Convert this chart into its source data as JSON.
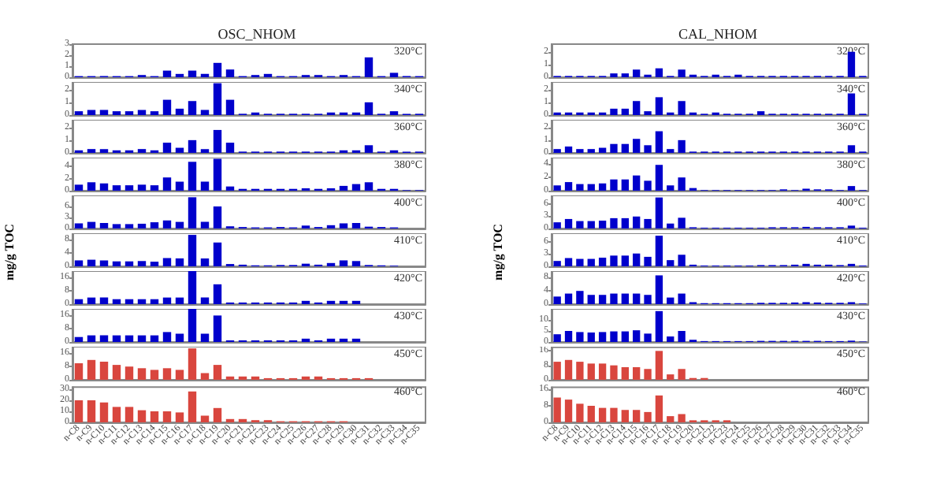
{
  "chart_data": [
    {
      "type": "bar",
      "title": "OSC_NHOM",
      "categories": [
        null,
        null,
        null,
        null,
        null,
        null,
        null,
        null,
        null,
        null,
        null,
        null,
        null,
        null,
        null,
        null,
        null,
        null,
        null,
        null,
        null,
        null,
        null,
        null,
        null,
        null,
        null,
        null
      ],
      "values": [
        0.1,
        0.1,
        0.1,
        0.1,
        0.1,
        0.2,
        0.1,
        0.6,
        0.3,
        0.6,
        0.3,
        1.3,
        0.7,
        0.1,
        0.2,
        0.3,
        0.1,
        0.1,
        0.2,
        0.2,
        0.1,
        0.2,
        0.1,
        1.8,
        0.1,
        0.4,
        0.1,
        0.1
      ],
      "color": "#0000cc",
      "ylim": [
        0,
        3
      ],
      "yticks": [
        0,
        1,
        2,
        3
      ],
      "annotations": [
        "320°C"
      ]
    },
    {
      "type": "bar",
      "categories": [
        null,
        null,
        null,
        null,
        null,
        null,
        null,
        null,
        null,
        null,
        null,
        null,
        null,
        null,
        null,
        null,
        null,
        null,
        null,
        null,
        null,
        null,
        null,
        null,
        null,
        null,
        null,
        null
      ],
      "values": [
        0.3,
        0.4,
        0.4,
        0.3,
        0.3,
        0.4,
        0.3,
        1.2,
        0.5,
        1.1,
        0.4,
        2.5,
        1.2,
        0.1,
        0.2,
        0.1,
        0.1,
        0.1,
        0.1,
        0.1,
        0.2,
        0.2,
        0.2,
        1.0,
        0.1,
        0.3,
        0.1,
        0.1
      ],
      "color": "#0000cc",
      "ylim": [
        0,
        2.6
      ],
      "yticks": [
        0,
        1,
        2
      ],
      "annotations": [
        "340°C"
      ]
    },
    {
      "type": "bar",
      "categories": [
        null,
        null,
        null,
        null,
        null,
        null,
        null,
        null,
        null,
        null,
        null,
        null,
        null,
        null,
        null,
        null,
        null,
        null,
        null,
        null,
        null,
        null,
        null,
        null,
        null,
        null,
        null,
        null
      ],
      "values": [
        0.2,
        0.3,
        0.3,
        0.2,
        0.2,
        0.3,
        0.2,
        0.8,
        0.4,
        1.0,
        0.3,
        1.8,
        0.8,
        0.1,
        0.1,
        0.1,
        0.1,
        0.1,
        0.1,
        0.1,
        0.1,
        0.2,
        0.2,
        0.6,
        0.1,
        0.2,
        0.1,
        0.1
      ],
      "color": "#0000cc",
      "ylim": [
        0,
        2.6
      ],
      "yticks": [
        0,
        1,
        2
      ],
      "annotations": [
        "360°C"
      ]
    },
    {
      "type": "bar",
      "categories": [
        null,
        null,
        null,
        null,
        null,
        null,
        null,
        null,
        null,
        null,
        null,
        null,
        null,
        null,
        null,
        null,
        null,
        null,
        null,
        null,
        null,
        null,
        null,
        null,
        null,
        null,
        null,
        null
      ],
      "values": [
        1.0,
        1.4,
        1.2,
        0.9,
        0.9,
        1.0,
        0.9,
        2.2,
        1.5,
        4.8,
        1.5,
        5.3,
        0.7,
        0.3,
        0.3,
        0.3,
        0.3,
        0.3,
        0.4,
        0.3,
        0.4,
        0.8,
        1.1,
        1.4,
        0.3,
        0.3,
        0.1,
        0.1
      ],
      "color": "#0000cc",
      "ylim": [
        0,
        5.5
      ],
      "yticks": [
        0,
        2,
        4
      ],
      "annotations": [
        "380°C"
      ]
    },
    {
      "type": "bar",
      "categories": [
        null,
        null,
        null,
        null,
        null,
        null,
        null,
        null,
        null,
        null,
        null,
        null,
        null,
        null,
        null,
        null,
        null,
        null,
        null,
        null,
        null,
        null,
        null,
        null,
        null,
        null,
        null,
        null
      ],
      "values": [
        1.4,
        1.8,
        1.5,
        1.2,
        1.2,
        1.3,
        1.7,
        2.2,
        1.8,
        8.5,
        1.8,
        6.0,
        0.6,
        0.4,
        0.3,
        0.3,
        0.4,
        0.3,
        0.8,
        0.4,
        0.9,
        1.4,
        1.5,
        0.5,
        0.4,
        0.3,
        null,
        null
      ],
      "color": "#0000cc",
      "ylim": [
        0,
        9
      ],
      "yticks": [
        0,
        3,
        6
      ],
      "annotations": [
        "400°C"
      ]
    },
    {
      "type": "bar",
      "ylabel": "mg/g TOC",
      "categories": [
        null,
        null,
        null,
        null,
        null,
        null,
        null,
        null,
        null,
        null,
        null,
        null,
        null,
        null,
        null,
        null,
        null,
        null,
        null,
        null,
        null,
        null,
        null,
        null,
        null,
        null,
        null,
        null
      ],
      "values": [
        1.8,
        2.0,
        1.8,
        1.5,
        1.5,
        1.6,
        1.4,
        2.5,
        2.4,
        9.5,
        2.4,
        7.2,
        0.7,
        0.5,
        0.3,
        0.3,
        0.4,
        0.4,
        0.8,
        0.5,
        1.0,
        1.8,
        1.6,
        0.4,
        0.3,
        0.2,
        null,
        null
      ],
      "color": "#0000cc",
      "ylim": [
        0,
        10
      ],
      "yticks": [
        0,
        4,
        8
      ],
      "annotations": [
        "410°C"
      ]
    },
    {
      "type": "bar",
      "categories": [
        null,
        null,
        null,
        null,
        null,
        null,
        null,
        null,
        null,
        null,
        null,
        null,
        null,
        null,
        null,
        null,
        null,
        null,
        null,
        null,
        null,
        null,
        null,
        null,
        null,
        null,
        null,
        null
      ],
      "values": [
        3,
        4,
        4,
        3,
        3,
        3,
        3,
        4,
        4,
        20,
        4,
        12,
        1,
        1,
        1,
        1,
        1,
        1,
        2,
        1,
        2,
        2,
        2,
        0,
        0,
        0,
        0,
        0
      ],
      "color": "#0000cc",
      "ylim": [
        0,
        20
      ],
      "yticks": [
        0,
        8,
        16
      ],
      "annotations": [
        "420°C"
      ]
    },
    {
      "type": "bar",
      "categories": [
        null,
        null,
        null,
        null,
        null,
        null,
        null,
        null,
        null,
        null,
        null,
        null,
        null,
        null,
        null,
        null,
        null,
        null,
        null,
        null,
        null,
        null,
        null,
        null,
        null,
        null,
        null,
        null
      ],
      "values": [
        3,
        4,
        4,
        4,
        4,
        4,
        4,
        6,
        5,
        20,
        5,
        16,
        1,
        1,
        1,
        1,
        1,
        1,
        2,
        1,
        2,
        2,
        2,
        0,
        0,
        0,
        0,
        0
      ],
      "color": "#0000cc",
      "ylim": [
        0,
        20
      ],
      "yticks": [
        0,
        8,
        16
      ],
      "annotations": [
        "430°C"
      ]
    },
    {
      "type": "bar",
      "categories": [
        null,
        null,
        null,
        null,
        null,
        null,
        null,
        null,
        null,
        null,
        null,
        null,
        null,
        null,
        null,
        null,
        null,
        null,
        null,
        null,
        null,
        null,
        null,
        null,
        null,
        null,
        null,
        null
      ],
      "values": [
        10,
        12,
        11,
        9,
        8,
        7,
        6,
        7,
        6,
        19,
        4,
        9,
        2,
        2,
        2,
        1,
        1,
        1,
        2,
        2,
        1,
        1,
        1,
        1,
        0,
        0,
        0,
        0
      ],
      "color": "#d9463e",
      "ylim": [
        0,
        20
      ],
      "yticks": [
        0,
        8,
        16
      ],
      "annotations": [
        "450°C"
      ]
    },
    {
      "type": "bar",
      "categories": [
        "n-C8",
        "n-C9",
        "n-C10",
        "n-C11",
        "n-C12",
        "n-C13",
        "n-C14",
        "n-C15",
        "n-C16",
        "n-C17",
        "n-C18",
        "n-C19",
        "n-C20",
        "n-C21",
        "n-C22",
        "n-C23",
        "n-C24",
        "n-C25",
        "n-C26",
        "n-C27",
        "n-C28",
        "n-C29",
        "n-C30",
        "n-C31",
        "n-C32",
        "n-C33",
        "n-C34",
        "n-C35"
      ],
      "values": [
        20,
        20,
        18,
        14,
        14,
        11,
        10,
        10,
        9,
        28,
        6,
        13,
        3,
        3,
        2,
        2,
        1,
        1,
        1,
        1,
        1,
        1,
        null,
        null,
        null,
        null,
        null,
        null
      ],
      "color": "#d9463e",
      "ylim": [
        0,
        32
      ],
      "yticks": [
        0,
        10,
        20,
        30
      ],
      "annotations": [
        "460°C"
      ]
    },
    {
      "type": "bar",
      "title": "CAL_NHOM",
      "categories": [
        null,
        null,
        null,
        null,
        null,
        null,
        null,
        null,
        null,
        null,
        null,
        null,
        null,
        null,
        null,
        null,
        null,
        null,
        null,
        null,
        null,
        null,
        null,
        null,
        null,
        null,
        null,
        null
      ],
      "values": [
        0.1,
        0.1,
        0.1,
        0.1,
        0.1,
        0.3,
        0.3,
        0.6,
        0.2,
        0.7,
        0.1,
        0.6,
        0.2,
        0.1,
        0.2,
        0.1,
        0.2,
        0.1,
        0.1,
        0.1,
        0.1,
        0.1,
        0.1,
        0.1,
        0.1,
        0.1,
        2.0,
        0.1
      ],
      "color": "#0000cc",
      "ylim": [
        0,
        2.6
      ],
      "yticks": [
        0,
        1,
        2
      ],
      "annotations": [
        "320°C"
      ]
    },
    {
      "type": "bar",
      "categories": [
        null,
        null,
        null,
        null,
        null,
        null,
        null,
        null,
        null,
        null,
        null,
        null,
        null,
        null,
        null,
        null,
        null,
        null,
        null,
        null,
        null,
        null,
        null,
        null,
        null,
        null,
        null,
        null
      ],
      "values": [
        0.2,
        0.2,
        0.2,
        0.2,
        0.2,
        0.5,
        0.5,
        1.1,
        0.3,
        1.4,
        0.2,
        1.1,
        0.2,
        0.1,
        0.2,
        0.1,
        0.1,
        0.1,
        0.3,
        0.1,
        0.1,
        0.1,
        0.1,
        0.1,
        0.1,
        0.1,
        1.7,
        0.1
      ],
      "color": "#0000cc",
      "ylim": [
        0,
        2.6
      ],
      "yticks": [
        0,
        1,
        2
      ],
      "annotations": [
        "340°C"
      ]
    },
    {
      "type": "bar",
      "categories": [
        null,
        null,
        null,
        null,
        null,
        null,
        null,
        null,
        null,
        null,
        null,
        null,
        null,
        null,
        null,
        null,
        null,
        null,
        null,
        null,
        null,
        null,
        null,
        null,
        null,
        null,
        null,
        null
      ],
      "values": [
        0.3,
        0.5,
        0.3,
        0.3,
        0.4,
        0.7,
        0.7,
        1.1,
        0.6,
        1.7,
        0.3,
        1.0,
        0.1,
        0.1,
        0.1,
        0.1,
        0.1,
        0.1,
        0.1,
        0.1,
        0.1,
        0.1,
        0.1,
        0.1,
        0.1,
        0.1,
        0.6,
        0.1
      ],
      "color": "#0000cc",
      "ylim": [
        0,
        2.6
      ],
      "yticks": [
        0,
        1,
        2
      ],
      "annotations": [
        "360°C"
      ]
    },
    {
      "type": "bar",
      "categories": [
        null,
        null,
        null,
        null,
        null,
        null,
        null,
        null,
        null,
        null,
        null,
        null,
        null,
        null,
        null,
        null,
        null,
        null,
        null,
        null,
        null,
        null,
        null,
        null,
        null,
        null,
        null,
        null
      ],
      "values": [
        0.8,
        1.3,
        1.0,
        1.0,
        1.1,
        1.7,
        1.7,
        2.3,
        1.5,
        3.9,
        0.8,
        2.0,
        0.4,
        0.1,
        0.1,
        0.1,
        0.1,
        0.1,
        0.1,
        0.1,
        0.2,
        0.1,
        0.3,
        0.2,
        0.2,
        0.1,
        0.7,
        0.1
      ],
      "color": "#0000cc",
      "ylim": [
        0,
        5
      ],
      "yticks": [
        0,
        2,
        4
      ],
      "annotations": [
        "380°C"
      ]
    },
    {
      "type": "bar",
      "categories": [
        null,
        null,
        null,
        null,
        null,
        null,
        null,
        null,
        null,
        null,
        null,
        null,
        null,
        null,
        null,
        null,
        null,
        null,
        null,
        null,
        null,
        null,
        null,
        null,
        null,
        null,
        null,
        null
      ],
      "values": [
        1.5,
        2.3,
        1.8,
        1.8,
        1.9,
        2.5,
        2.5,
        2.9,
        2.3,
        7.5,
        1.2,
        2.6,
        0.3,
        0.2,
        0.2,
        0.2,
        0.2,
        0.2,
        0.2,
        0.3,
        0.3,
        0.3,
        0.4,
        0.3,
        0.3,
        0.3,
        0.7,
        0.2
      ],
      "color": "#0000cc",
      "ylim": [
        0,
        8
      ],
      "yticks": [
        0,
        3,
        6
      ],
      "annotations": [
        "400°C"
      ]
    },
    {
      "type": "bar",
      "ylabel": "mg/g TOC",
      "categories": [
        null,
        null,
        null,
        null,
        null,
        null,
        null,
        null,
        null,
        null,
        null,
        null,
        null,
        null,
        null,
        null,
        null,
        null,
        null,
        null,
        null,
        null,
        null,
        null,
        null,
        null,
        null,
        null
      ],
      "values": [
        1.3,
        2.0,
        1.8,
        1.8,
        2.1,
        2.6,
        2.6,
        3.1,
        2.3,
        7.4,
        1.5,
        2.8,
        0.4,
        0.2,
        0.2,
        0.2,
        0.2,
        0.2,
        0.3,
        0.3,
        0.3,
        0.4,
        0.6,
        0.4,
        0.4,
        0.3,
        0.6,
        0.2
      ],
      "color": "#0000cc",
      "ylim": [
        0,
        8
      ],
      "yticks": [
        0,
        3,
        6
      ],
      "annotations": [
        "410°C"
      ]
    },
    {
      "type": "bar",
      "categories": [
        null,
        null,
        null,
        null,
        null,
        null,
        null,
        null,
        null,
        null,
        null,
        null,
        null,
        null,
        null,
        null,
        null,
        null,
        null,
        null,
        null,
        null,
        null,
        null,
        null,
        null,
        null,
        null
      ],
      "values": [
        2.3,
        3.2,
        4.0,
        2.8,
        2.8,
        3.2,
        3.2,
        3.2,
        2.8,
        8.7,
        2.0,
        3.2,
        0.6,
        0.3,
        0.3,
        0.3,
        0.3,
        0.3,
        0.4,
        0.4,
        0.4,
        0.5,
        0.6,
        0.5,
        0.4,
        0.4,
        0.6,
        0.2
      ],
      "color": "#0000cc",
      "ylim": [
        0,
        10
      ],
      "yticks": [
        0,
        4,
        8
      ],
      "annotations": [
        "420°C"
      ]
    },
    {
      "type": "bar",
      "categories": [
        null,
        null,
        null,
        null,
        null,
        null,
        null,
        null,
        null,
        null,
        null,
        null,
        null,
        null,
        null,
        null,
        null,
        null,
        null,
        null,
        null,
        null,
        null,
        null,
        null,
        null,
        null,
        null
      ],
      "values": [
        3.5,
        5.0,
        4.5,
        4.3,
        4.5,
        4.8,
        4.8,
        5.3,
        3.8,
        14.0,
        2.5,
        5.0,
        1.0,
        0.4,
        0.4,
        0.4,
        0.4,
        0.4,
        0.5,
        0.5,
        0.5,
        0.5,
        0.5,
        0.5,
        0.4,
        0.4,
        0.6,
        0.2
      ],
      "color": "#0000cc",
      "ylim": [
        0,
        15
      ],
      "yticks": [
        0,
        5,
        10
      ],
      "annotations": [
        "430°C"
      ]
    },
    {
      "type": "bar",
      "categories": [
        null,
        null,
        null,
        null,
        null,
        null,
        null,
        null,
        null,
        null,
        null,
        null,
        null,
        null,
        null,
        null,
        null,
        null,
        null,
        null,
        null,
        null,
        null,
        null,
        null,
        null,
        null,
        null
      ],
      "values": [
        10,
        11,
        10,
        9,
        9,
        8,
        7,
        7,
        6,
        16,
        3,
        6,
        1,
        1,
        0,
        0,
        0,
        0,
        0,
        0,
        0,
        0,
        0,
        0,
        0,
        0,
        0,
        0
      ],
      "color": "#d9463e",
      "ylim": [
        0,
        18
      ],
      "yticks": [
        0,
        8,
        16
      ],
      "annotations": [
        "450°C"
      ]
    },
    {
      "type": "bar",
      "categories": [
        "n-C8",
        "n-C9",
        "n-C10",
        "n-C11",
        "n-C12",
        "n-C13",
        "n-C14",
        "n-C15",
        "n-C16",
        "n-C17",
        "n-C18",
        "n-C19",
        "n-C20",
        "n-C21",
        "n-C22",
        "n-C23",
        "n-C24",
        "n-C25",
        "n-C26",
        "n-C27",
        "n-C28",
        "n-C29",
        "n-C30",
        "n-C31",
        "n-C32",
        "n-C33",
        "n-C34",
        "n-C35"
      ],
      "values": [
        12,
        11,
        9,
        8,
        7,
        7,
        6,
        6,
        5,
        13,
        3,
        4,
        1,
        1,
        1,
        1,
        0,
        0,
        0,
        0,
        0,
        0,
        0,
        null,
        null,
        null,
        null,
        null
      ],
      "color": "#d9463e",
      "ylim": [
        0,
        17
      ],
      "yticks": [
        0,
        8,
        16
      ],
      "annotations": [
        "460°C"
      ]
    }
  ]
}
